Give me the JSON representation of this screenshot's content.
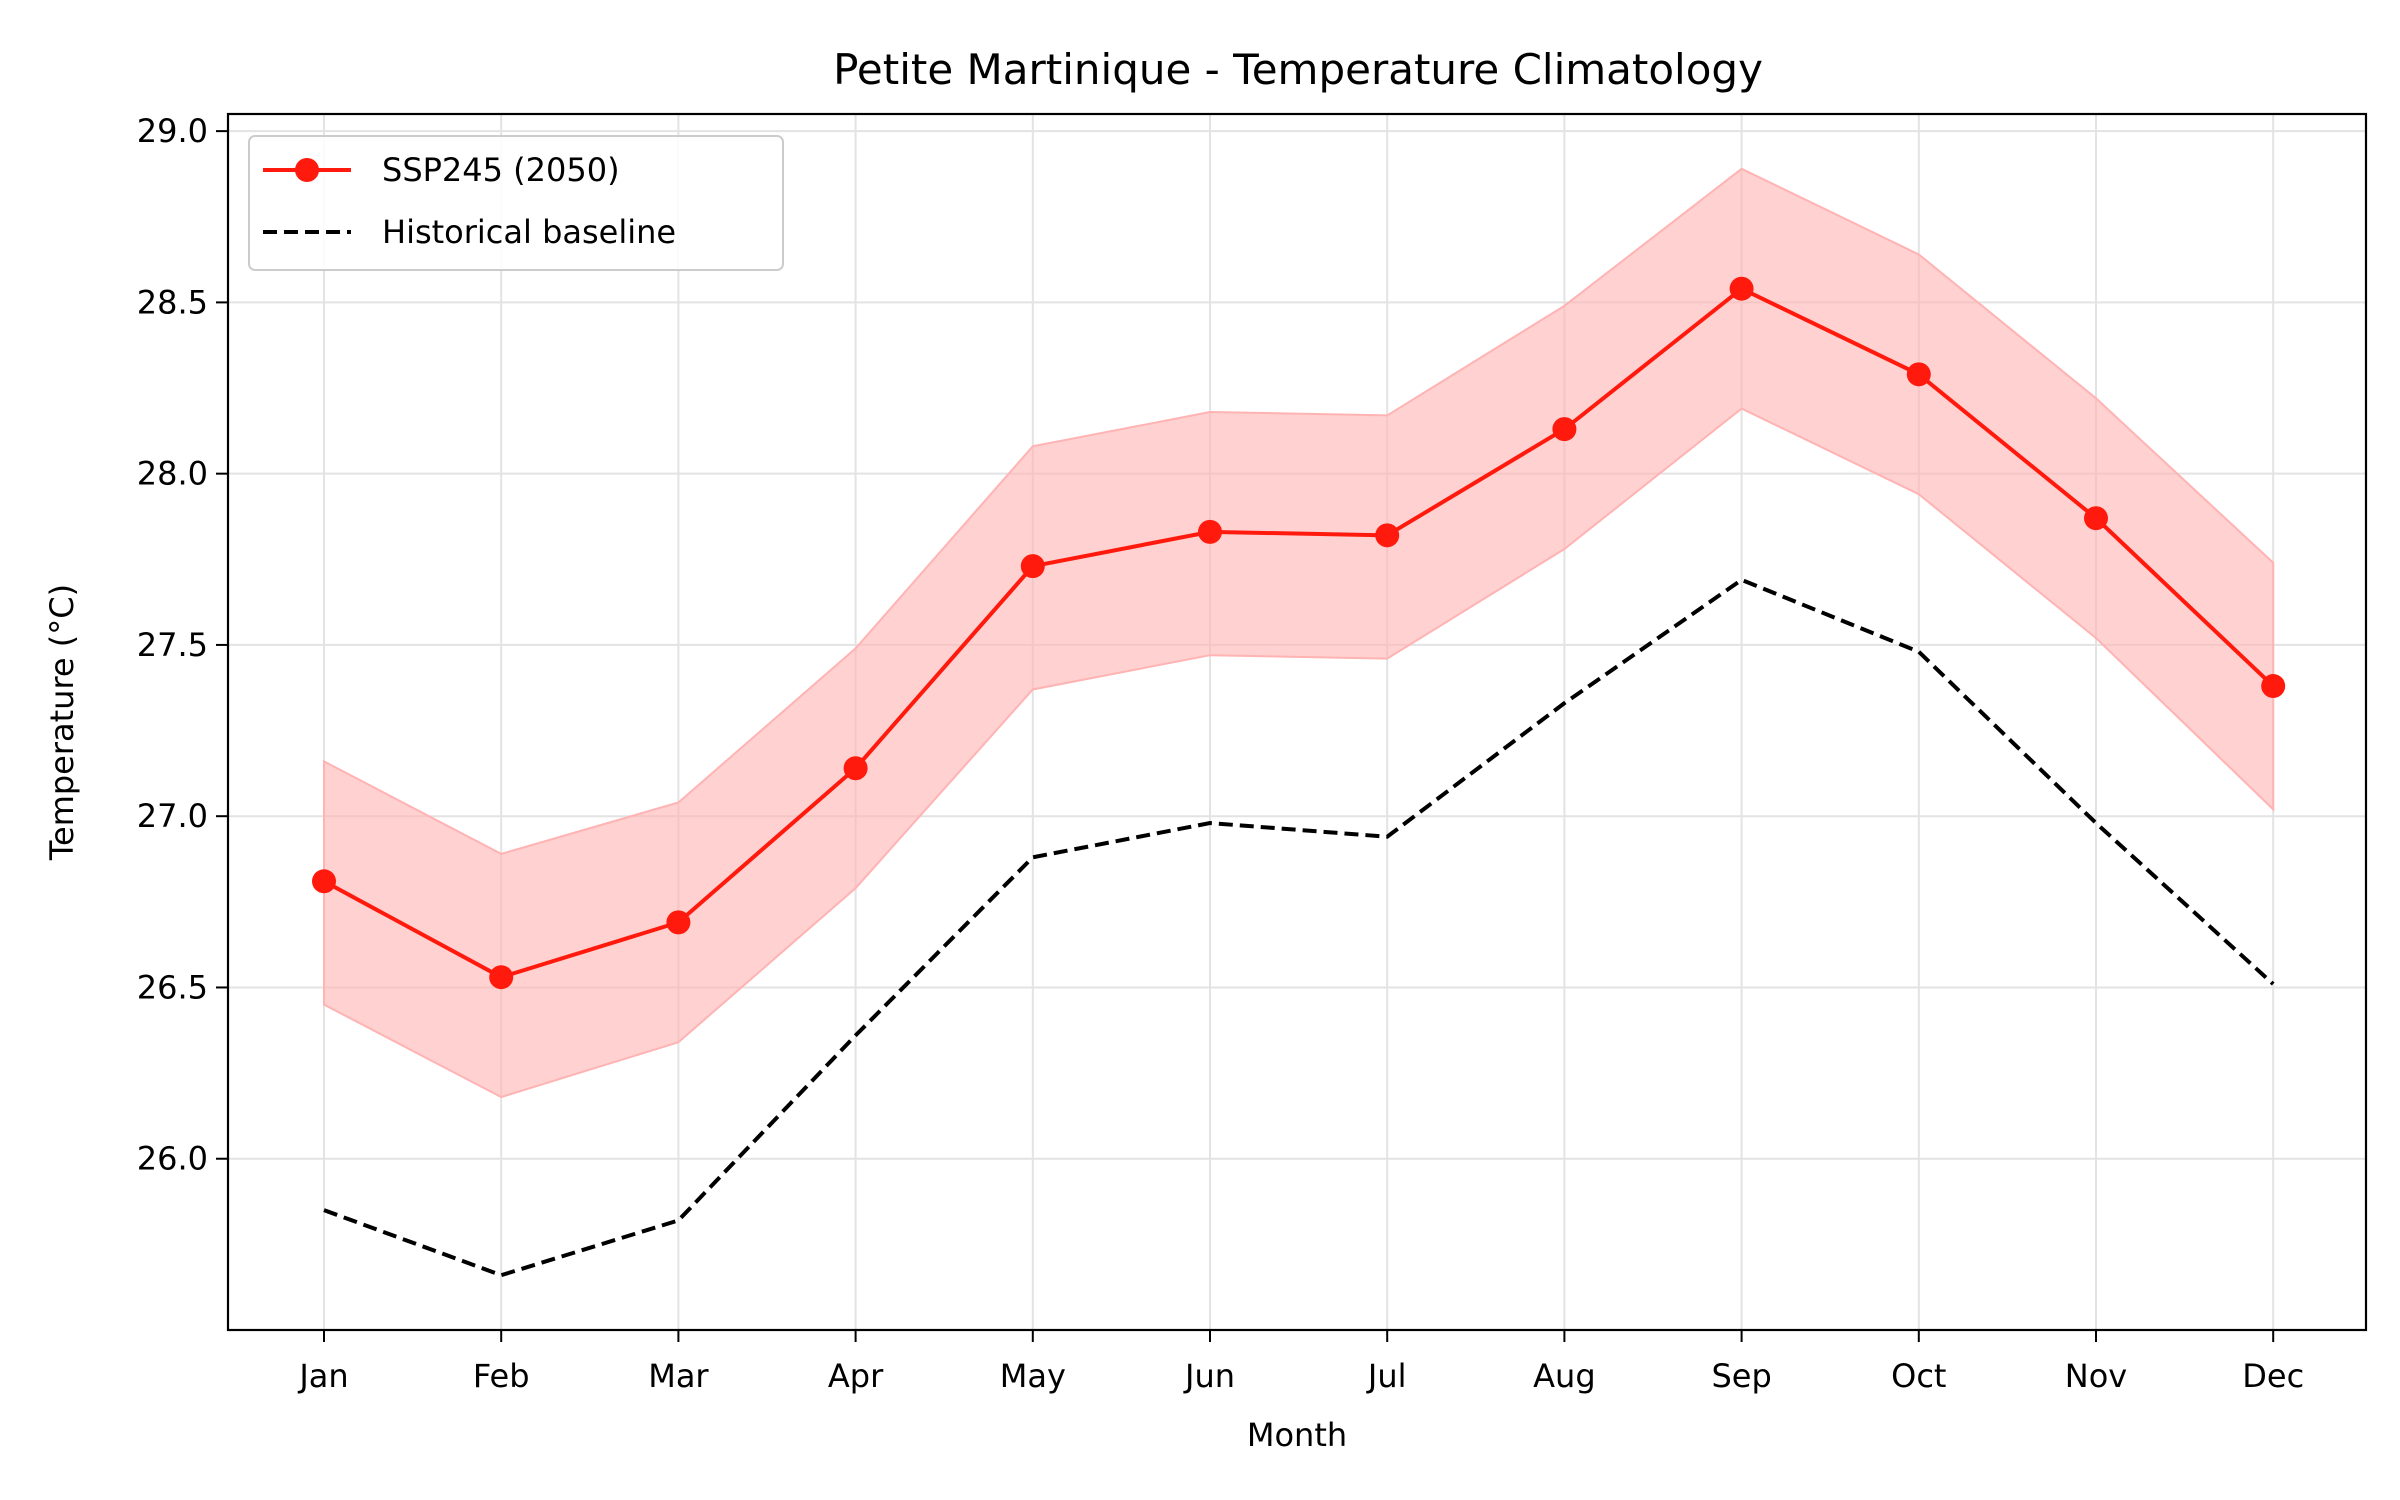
{
  "chart_data": {
    "type": "line",
    "title": "Petite Martinique - Temperature Climatology",
    "xlabel": "Month",
    "ylabel": "Temperature (°C)",
    "categories": [
      "Jan",
      "Feb",
      "Mar",
      "Apr",
      "May",
      "Jun",
      "Jul",
      "Aug",
      "Sep",
      "Oct",
      "Nov",
      "Dec"
    ],
    "ylim": [
      25.5,
      29.05
    ],
    "yticks": [
      "26.0",
      "26.5",
      "27.0",
      "27.5",
      "28.0",
      "28.5",
      "29.0"
    ],
    "grid": true,
    "legend_position": "top-left",
    "series": [
      {
        "name": "SSP245 (2050)",
        "style": "solid line with circle markers",
        "color": "#ff1a0d",
        "values": [
          26.81,
          26.53,
          26.69,
          27.14,
          27.73,
          27.83,
          27.82,
          28.13,
          28.54,
          28.29,
          27.87,
          27.38
        ],
        "band_lower": [
          26.45,
          26.18,
          26.34,
          26.79,
          27.37,
          27.47,
          27.46,
          27.78,
          28.19,
          27.94,
          27.52,
          27.02
        ],
        "band_upper": [
          27.16,
          26.89,
          27.04,
          27.49,
          28.08,
          28.18,
          28.17,
          28.49,
          28.89,
          28.64,
          28.22,
          27.74
        ],
        "band_color": "#ffb3b3"
      },
      {
        "name": "Historical baseline",
        "style": "dashed line",
        "color": "#000000",
        "values": [
          25.85,
          25.66,
          25.82,
          26.36,
          26.88,
          26.98,
          26.94,
          27.33,
          27.69,
          27.48,
          26.98,
          26.51
        ]
      }
    ]
  }
}
